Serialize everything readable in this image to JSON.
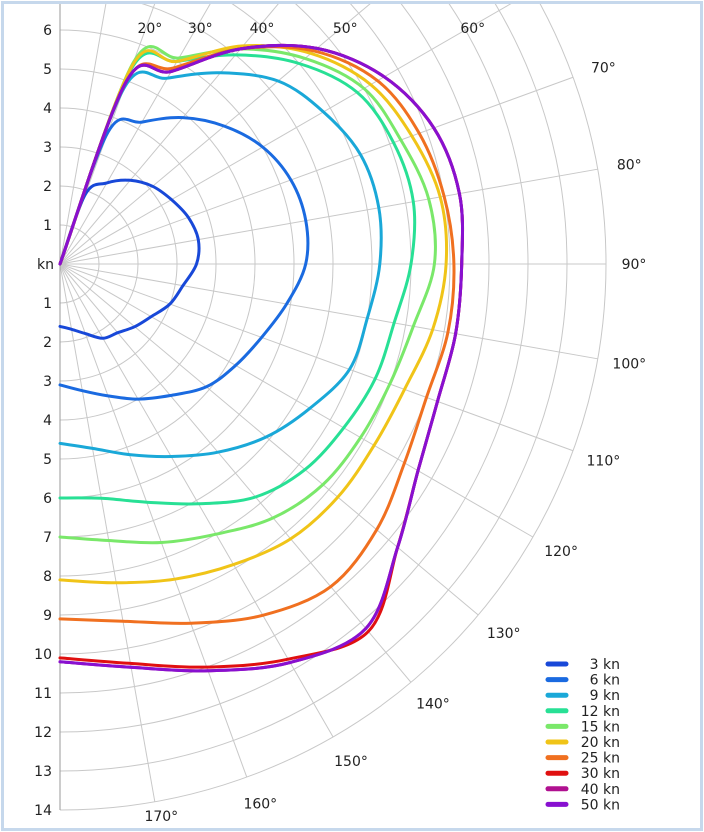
{
  "chart_data": {
    "type": "line",
    "subtype": "polar-half",
    "title": "",
    "radial_unit_label": "kn",
    "radial_ticks": [
      "1",
      "2",
      "3",
      "4",
      "5",
      "6",
      "7",
      "8",
      "9",
      "10",
      "11",
      "12",
      "13",
      "14"
    ],
    "angle_ticks": [
      {
        "deg": 20,
        "label": "20°"
      },
      {
        "deg": 30,
        "label": "30°"
      },
      {
        "deg": 40,
        "label": "40°"
      },
      {
        "deg": 50,
        "label": "50°"
      },
      {
        "deg": 60,
        "label": "60°"
      },
      {
        "deg": 70,
        "label": "70°"
      },
      {
        "deg": 80,
        "label": "80°"
      },
      {
        "deg": 90,
        "label": "90°"
      },
      {
        "deg": 100,
        "label": "100°"
      },
      {
        "deg": 110,
        "label": "110°"
      },
      {
        "deg": 120,
        "label": "120°"
      },
      {
        "deg": 130,
        "label": "130°"
      },
      {
        "deg": 140,
        "label": "140°"
      },
      {
        "deg": 150,
        "label": "150°"
      },
      {
        "deg": 160,
        "label": "160°"
      },
      {
        "deg": 170,
        "label": "170°"
      }
    ],
    "angle_range": [
      0,
      180
    ],
    "radial_range": [
      0,
      14
    ],
    "grid": true,
    "legend_position": "bottom-right",
    "angles_deg": [
      0,
      20,
      30,
      40,
      50,
      60,
      70,
      80,
      90,
      100,
      110,
      120,
      130,
      140,
      150,
      160,
      170,
      180
    ],
    "series": [
      {
        "name": "3 kn",
        "color": "#1848d8",
        "speeds": [
          0,
          1.9,
          2.4,
          2.8,
          3.1,
          3.3,
          3.5,
          3.6,
          3.5,
          3.2,
          3.0,
          2.7,
          2.5,
          2.3,
          2.2,
          1.9,
          1.7,
          1.6
        ]
      },
      {
        "name": "6 kn",
        "color": "#1a6ae0",
        "speeds": [
          0,
          3.6,
          4.2,
          4.9,
          5.5,
          6.0,
          6.3,
          6.4,
          6.3,
          5.9,
          5.5,
          5.2,
          4.9,
          4.4,
          4.0,
          3.6,
          3.3,
          3.1
        ]
      },
      {
        "name": "9 kn",
        "color": "#1aa8d8",
        "speeds": [
          0,
          4.8,
          5.5,
          6.4,
          7.3,
          7.8,
          8.2,
          8.3,
          8.2,
          8.0,
          7.9,
          7.4,
          6.9,
          6.3,
          5.7,
          5.2,
          4.8,
          4.6
        ]
      },
      {
        "name": "12 kn",
        "color": "#28e095",
        "speeds": [
          0,
          5.3,
          6.0,
          7.0,
          8.0,
          8.8,
          9.1,
          9.2,
          9.0,
          8.7,
          8.6,
          8.4,
          8.2,
          7.8,
          7.1,
          6.5,
          6.1,
          6.0
        ]
      },
      {
        "name": "15 kn",
        "color": "#7ae86a",
        "speeds": [
          0,
          5.5,
          6.1,
          7.2,
          8.2,
          9.0,
          9.3,
          9.6,
          9.6,
          9.2,
          9.0,
          8.9,
          8.8,
          8.5,
          8.0,
          7.6,
          7.2,
          7.0
        ]
      },
      {
        "name": "20 kn",
        "color": "#f0c418",
        "speeds": [
          0,
          5.4,
          6.0,
          7.3,
          8.4,
          9.2,
          9.6,
          9.9,
          9.9,
          9.7,
          9.4,
          9.3,
          9.3,
          9.2,
          8.9,
          8.6,
          8.3,
          8.1
        ]
      },
      {
        "name": "25 kn",
        "color": "#f07020",
        "speeds": [
          0,
          5.0,
          5.8,
          7.2,
          8.5,
          9.4,
          9.8,
          10.0,
          10.1,
          10.1,
          10.0,
          10.2,
          10.6,
          10.8,
          10.4,
          9.8,
          9.3,
          9.1
        ]
      },
      {
        "name": "30 kn",
        "color": "#e01010",
        "speeds": [
          0,
          5.0,
          5.7,
          7.2,
          8.6,
          9.6,
          10.2,
          10.4,
          10.3,
          10.3,
          10.3,
          10.6,
          11.3,
          12.3,
          11.7,
          11.0,
          10.4,
          10.1
        ]
      },
      {
        "name": "40 kn",
        "color": "#b01090",
        "speeds": [
          0,
          5.0,
          5.7,
          7.2,
          8.6,
          9.6,
          10.2,
          10.4,
          10.3,
          10.3,
          10.3,
          10.6,
          11.3,
          12.2,
          11.8,
          11.1,
          10.5,
          10.2
        ]
      },
      {
        "name": "50 kn",
        "color": "#8810d0",
        "speeds": [
          0,
          5.0,
          5.7,
          7.2,
          8.6,
          9.6,
          10.2,
          10.4,
          10.3,
          10.3,
          10.3,
          10.6,
          11.3,
          12.2,
          11.8,
          11.1,
          10.5,
          10.2
        ]
      }
    ]
  }
}
